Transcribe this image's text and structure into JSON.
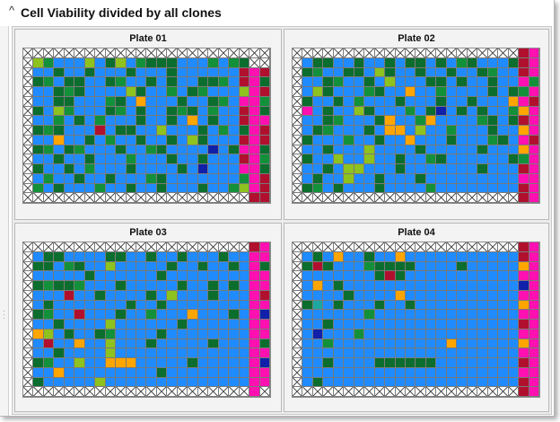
{
  "window": {
    "title": "Cell Viability divided by all clones",
    "collapse_icon": "chevron-up-icon"
  },
  "palette": {
    "B": "#1f8bff",
    "D": "#0b6e2e",
    "G": "#13913a",
    "L": "#8dc21f",
    "O": "#ffa500",
    "R": "#b0102e",
    "P": "#ff10b0",
    "N": "#1020a8",
    "T": "#1ca8a0",
    "X": "empty"
  },
  "plates": [
    {
      "title": "Plate 01",
      "rows": [
        "XXXXXXXXXXXXXXXXXXXXXXXX",
        "XLGBBBLBDLBGDDDBBBGBGDXX",
        "XBBDBBDBBBDBBBDBBBBBBRPR",
        "XDGBDDBBDGBBDBDBBDDGBRPD",
        "XBBDGDBBBBLDBBGBDGBBBLPR",
        "XBBDDBBBGDBOBBBDBBDGBPPG",
        "XDBLGBBBDGBDBBDGDBGBBRPD",
        "XBBGBDBGBBBDBBDBOBDBBRPP",
        "XDGDBBBRBDDBBLBBBDBGBDPR",
        "XBBOBBDBGBBDBBDBLDBBBRPR",
        "XDGBDGBBBDBBGDBBBBNBDPPD",
        "XBBDBBDBBBGBBBDBBDBBBRPG",
        "XDBBDBGBBBDBBBBDBNBBBPPD",
        "XBGBBDBBDBBBGDBBBBBBBGPR",
        "XGBDBBBGBBDBBDBBBDBBGLPR",
        "XXXXXXXXXXXXXXXXXXXXXXRR"
      ]
    },
    {
      "title": "Plate 02",
      "rows": [
        "XXXXXXXXXXXXXXXXXXXXXXRP",
        "XBDDBBDBBDBDDBDBGDBBBDRP",
        "XDGBBDDBLDBBDBBDBBDGBBRP",
        "XBBDGBBDBLBBBDDBDBBDBBPG",
        "XBLDBBBGDBBOBBGBBBBDBDGP",
        "XDBBDBGBBBDBBBDBBDBBBOPR",
        "XPBDBBLDBBBGBDNBDBDBBGOP",
        "XBBDGBBBDOBBGOBBBBGDBDRP",
        "XBDGBBBDBOOBLBBGBBBDBBOP",
        "XDBBBGBBDBBOBBBDBBBGDBPR",
        "XBBDBBBLBBBBDBBBBBDBBBOP",
        "XDBBLBBLBBDBBGDBBBBBBDGP",
        "XBBDBLLBBBDBBBBBBBDBBBRP",
        "XBDBBLBBDBBBDBBBBBBBBBPP",
        "XDGBDBBBDBBBBGBBBBBBBBRP",
        "XXXXXXXXXXXXXXXXXXXXXXRP"
      ]
    },
    {
      "title": "Plate 03",
      "rows": [
        "XXXXXXXXXXXXXXXXXXXXXXRP",
        "XBDDBBBBDDBBDBBDBBBDBBPP",
        "XDDBGDBBLBBBBBDBBDBBDBPD",
        "XBBBBBDBBBBBBDBBBBBBBBPP",
        "XDGDDGBBBDBBBBBDBBDBDBPP",
        "XBBBRBBDBBBBDBLBBBDBBBPR",
        "XBDBBBBBBBDBBDBBBBBBBBPP",
        "XDGBBRBBBDBBGBBBOBBBDBPN",
        "XBBDBBBBLBBBBBBDBBBBBBPP",
        "XOLBDBBDGBBBBDBBBBBBBBPP",
        "XBRBBOBBLBBBDBBBBBDBBBPD",
        "XBBDBBBBLBBBBBBBBBBBBBPP",
        "XDGBBLBBOOOBBBBBDBBBBBPN",
        "XBBOBBBBBBBBBDBBBBBBBBPP",
        "XDBBBBBLBBBBBBBBBBBBBBPP",
        "XXXXXXXXXXXXXXXXXXXXXXPX"
      ]
    },
    {
      "title": "Plate 04",
      "rows": [
        "XXXXXXXXXXXXXXXXXXXXXXRP",
        "XBDBOBBDBBOBBBBBBBBBBBRP",
        "XDRDBBBGDDDDBBBBDBBBBBOP",
        "XBBBBBBBDRDBBBBBBBBBBBPP",
        "XBOBDBBBBBBBBBBBBBBBBBNP",
        "XBBBBDBBBBOBBBBBBBBBBBPP",
        "XDTBDBBBDBBDBBBBBBBBBBOP",
        "XBBBBBBGBBBBBBBBBBBBBBPP",
        "XBBDBBBBBBBBBBBBBBBBBBRP",
        "XBNBBBGBBBBBBBBBBBBBBBPP",
        "XBBGBBBBBBBBBBBOBBBBBBOP",
        "XBBBBBBBBBBBBBBBBBBBBBPP",
        "XBBDBBBBDDDDDDBBBBBBBBRP",
        "XBBBBBBBBBBBBBBBBBBBBBPP",
        "XBDBBBBBBBBBBBBBBBBBBBRP",
        "XXXXXXXXXXXXXXXXXXXXXXRP"
      ]
    }
  ]
}
